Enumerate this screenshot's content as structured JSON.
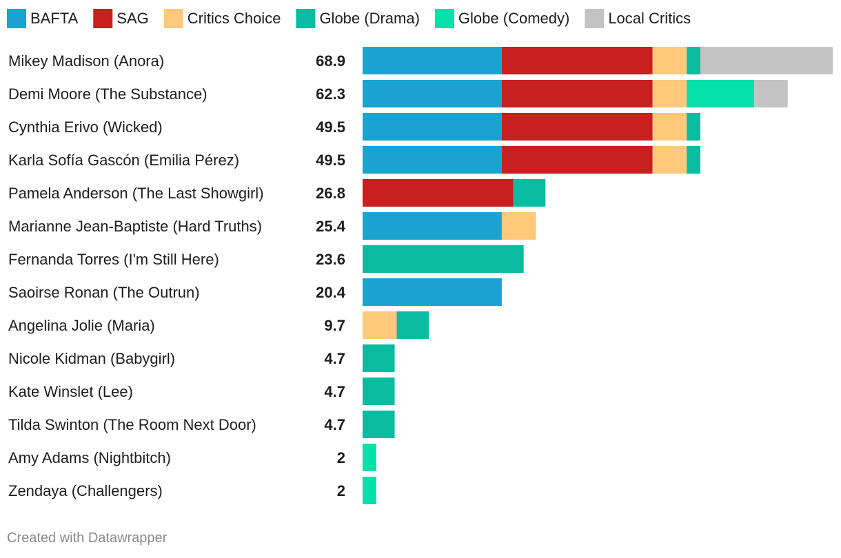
{
  "chart_data": {
    "type": "bar",
    "orientation": "horizontal",
    "stacked": true,
    "legend_position": "top-left",
    "grid": false,
    "xlim": [
      0,
      68.9
    ],
    "segment_keys": [
      "BAFTA",
      "SAG",
      "Critics Choice",
      "Globe (Drama)",
      "Globe (Comedy)",
      "Local Critics"
    ],
    "legend": [
      {
        "name": "BAFTA",
        "color": "#1aa3d1"
      },
      {
        "name": "SAG",
        "color": "#c81f1f"
      },
      {
        "name": "Critics Choice",
        "color": "#fec97a"
      },
      {
        "name": "Globe (Drama)",
        "color": "#09bca1"
      },
      {
        "name": "Globe (Comedy)",
        "color": "#06e0aa"
      },
      {
        "name": "Local Critics",
        "color": "#c3c3c3"
      }
    ],
    "categories": [
      "Mikey Madison (Anora)",
      "Demi Moore (The Substance)",
      "Cynthia Erivo (Wicked)",
      "Karla Sofía Gascón (Emilia Pérez)",
      "Pamela Anderson (The Last Showgirl)",
      "Marianne Jean-Baptiste (Hard Truths)",
      "Fernanda Torres (I'm Still Here)",
      "Saoirse Ronan (The Outrun)",
      "Angelina Jolie (Maria)",
      "Nicole Kidman (Babygirl)",
      "Kate Winslet (Lee)",
      "Tilda Swinton (The Room Next Door)",
      "Amy Adams (Nightbitch)",
      "Zendaya (Challengers)"
    ],
    "totals": [
      "68.9",
      "62.3",
      "49.5",
      "49.5",
      "26.8",
      "25.4",
      "23.6",
      "20.4",
      "9.7",
      "4.7",
      "4.7",
      "4.7",
      "2",
      "2"
    ],
    "series": [
      {
        "name": "BAFTA",
        "values": [
          20.4,
          20.4,
          20.4,
          20.4,
          0,
          20.4,
          0,
          20.4,
          0,
          0,
          0,
          0,
          0,
          0
        ]
      },
      {
        "name": "SAG",
        "values": [
          22.1,
          22.1,
          22.1,
          22.1,
          22.1,
          0,
          0,
          0,
          0,
          0,
          0,
          0,
          0,
          0
        ]
      },
      {
        "name": "Critics Choice",
        "values": [
          5.0,
          5.0,
          5.0,
          5.0,
          0,
          5.0,
          0,
          0,
          5.0,
          0,
          0,
          0,
          0,
          0
        ]
      },
      {
        "name": "Globe (Drama)",
        "values": [
          2.0,
          0,
          2.0,
          2.0,
          4.7,
          0,
          23.6,
          0,
          4.7,
          4.7,
          4.7,
          4.7,
          0,
          0
        ]
      },
      {
        "name": "Globe (Comedy)",
        "values": [
          0,
          9.9,
          0,
          0,
          0,
          0,
          0,
          0,
          0,
          0,
          0,
          0,
          2.0,
          2.0
        ]
      },
      {
        "name": "Local Critics",
        "values": [
          19.4,
          4.9,
          0,
          0,
          0,
          0,
          0,
          0,
          0,
          0,
          0,
          0,
          0,
          0
        ]
      }
    ]
  },
  "footer": {
    "credit": "Created with Datawrapper"
  }
}
